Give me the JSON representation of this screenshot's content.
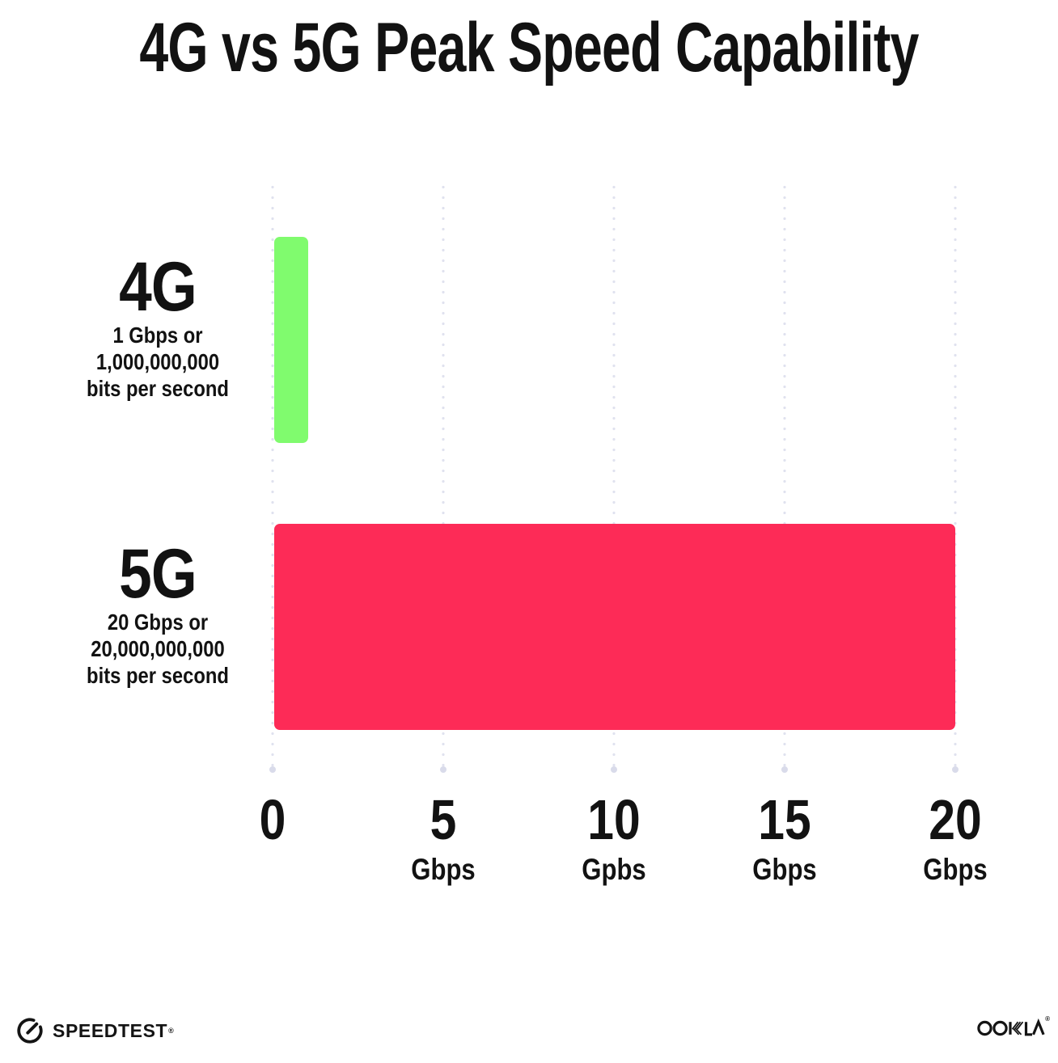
{
  "title": "4G vs 5G Peak Speed Capability",
  "colors": {
    "background": "#FFFFFF",
    "text": "#121212",
    "gridline": "#E0E2EF",
    "bar_4g_green": "#80FB6E",
    "bar_5g_pink": "#FD2B57"
  },
  "chart_data": {
    "type": "bar",
    "orientation": "horizontal",
    "title": "4G vs 5G Peak Speed Capability",
    "categories": [
      "4G",
      "5G"
    ],
    "values": [
      1,
      20
    ],
    "bar_colors": [
      "#80FB6E",
      "#FD2B57"
    ],
    "xlim": [
      0,
      20
    ],
    "grid": "dotted vertical gridlines every 5 Gbps",
    "legend": "none",
    "rows": [
      {
        "label": "4G",
        "value": 1,
        "color": "#80FB6E",
        "sublabel_lines": [
          "1 Gbps or",
          "1,000,000,000",
          "bits per second"
        ]
      },
      {
        "label": "5G",
        "value": 20,
        "color": "#FD2B57",
        "sublabel_lines": [
          "20 Gbps or",
          "20,000,000,000",
          "bits per second"
        ]
      }
    ],
    "x_ticks": [
      {
        "value": "0",
        "unit": ""
      },
      {
        "value": "5",
        "unit": "Gbps"
      },
      {
        "value": "10",
        "unit": "Gpbs"
      },
      {
        "value": "15",
        "unit": "Gbps"
      },
      {
        "value": "20",
        "unit": "Gbps"
      }
    ]
  },
  "footer": {
    "speedtest_label": "SPEEDTEST",
    "speedtest_mark": "®",
    "ookla_label": "OOKLA",
    "ookla_mark": "®"
  }
}
